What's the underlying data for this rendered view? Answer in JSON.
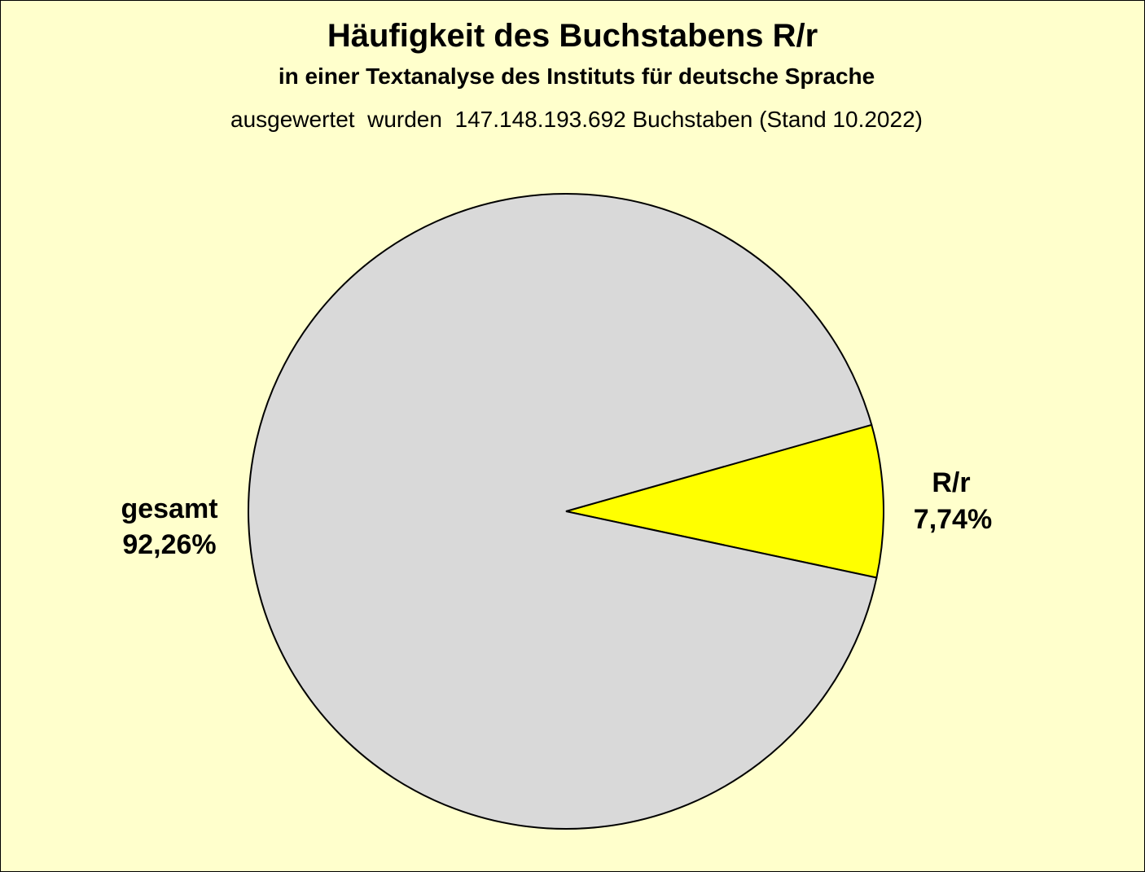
{
  "chart_data": {
    "type": "pie",
    "title": "Häufigkeit des Buchstabens R/r",
    "subtitle": "in einer Textanalyse des Instituts für deutsche Sprache",
    "note": "ausgewertet  wurden  147.148.193.692 Buchstaben (Stand 10.2022)",
    "slices": [
      {
        "label": "R/r",
        "value": 7.74,
        "value_label": "7,74%",
        "color": "#FFFF00"
      },
      {
        "label": "gesamt",
        "value": 92.26,
        "value_label": "92,26%",
        "color": "#D9D9D9"
      }
    ],
    "background_color": "#FFFFCC",
    "legend": "none"
  }
}
